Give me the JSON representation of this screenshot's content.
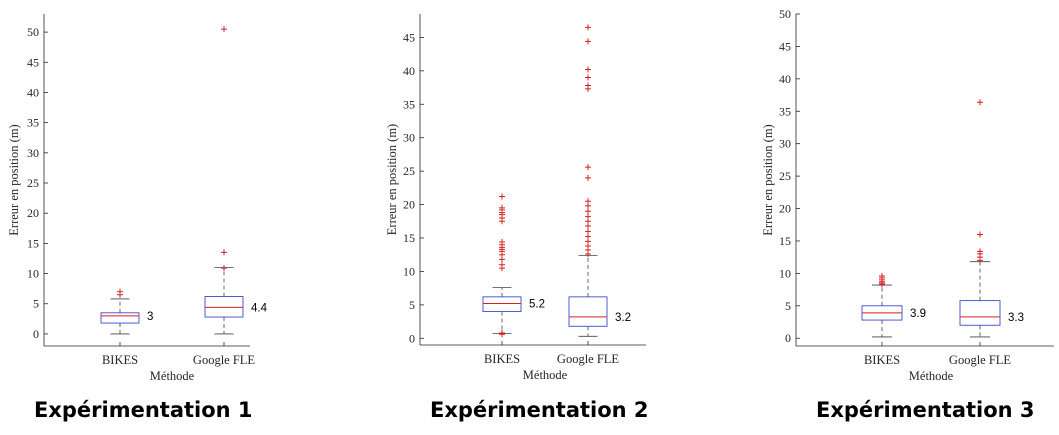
{
  "chart_data": [
    {
      "type": "box",
      "caption": "Expérimentation 1",
      "xlabel": "Méthode",
      "ylabel": "Erreur en position (m)",
      "ylim": [
        -2,
        53
      ],
      "yticks": [
        0,
        5,
        10,
        15,
        20,
        25,
        30,
        35,
        40,
        45,
        50
      ],
      "categories": [
        "BIKES",
        "Google FLE"
      ],
      "series": [
        {
          "q1": 1.8,
          "median": 3.0,
          "q3": 3.5,
          "whisker_low": 0.0,
          "whisker_high": 5.8,
          "outliers": [
            6.5,
            7.0
          ],
          "annotation": "3"
        },
        {
          "q1": 2.8,
          "median": 4.4,
          "q3": 6.2,
          "whisker_low": 0.0,
          "whisker_high": 11.0,
          "outliers": [
            10.9,
            13.5,
            50.5
          ],
          "annotation": "4.4"
        }
      ]
    },
    {
      "type": "box",
      "caption": "Expérimentation 2",
      "xlabel": "Méthode",
      "ylabel": "Erreur en position (m)",
      "ylim": [
        -1,
        48.5
      ],
      "yticks": [
        0,
        5,
        10,
        15,
        20,
        25,
        30,
        35,
        40,
        45
      ],
      "categories": [
        "BIKES",
        "Google FLE"
      ],
      "series": [
        {
          "q1": 4.0,
          "median": 5.2,
          "q3": 6.2,
          "whisker_low": 0.7,
          "whisker_high": 7.6,
          "outliers": [
            0.6,
            0.8,
            10.5,
            11.0,
            11.8,
            12.5,
            13.0,
            13.3,
            13.6,
            14.0,
            14.4,
            17.5,
            18.0,
            18.5,
            18.8,
            19.2,
            19.5,
            21.2
          ],
          "annotation": "5.2"
        },
        {
          "q1": 1.8,
          "median": 3.2,
          "q3": 6.2,
          "whisker_low": 0.3,
          "whisker_high": 12.4,
          "outliers": [
            12.6,
            13.2,
            13.8,
            14.5,
            15.2,
            16.0,
            16.8,
            17.5,
            18.2,
            19.0,
            19.8,
            20.5,
            24.0,
            25.6,
            37.3,
            37.8,
            39.0,
            40.2,
            44.4,
            46.5
          ],
          "annotation": "3.2"
        }
      ]
    },
    {
      "type": "box",
      "caption": "Expérimentation 3",
      "xlabel": "Méthode",
      "ylabel": "Erreur en position (m)",
      "ylim": [
        -1.2,
        50
      ],
      "yticks": [
        0,
        5,
        10,
        15,
        20,
        25,
        30,
        35,
        40,
        45,
        50
      ],
      "categories": [
        "BIKES",
        "Google FLE"
      ],
      "series": [
        {
          "q1": 2.8,
          "median": 3.9,
          "q3": 5.0,
          "whisker_low": 0.2,
          "whisker_high": 8.2,
          "outliers": [
            8.3,
            8.5,
            8.7,
            9.0,
            9.3,
            9.6
          ],
          "annotation": "3.9"
        },
        {
          "q1": 2.0,
          "median": 3.3,
          "q3": 5.8,
          "whisker_low": 0.2,
          "whisker_high": 11.8,
          "outliers": [
            12.0,
            12.5,
            13.0,
            13.4,
            16.0,
            36.4
          ],
          "annotation": "3.3"
        }
      ]
    }
  ]
}
